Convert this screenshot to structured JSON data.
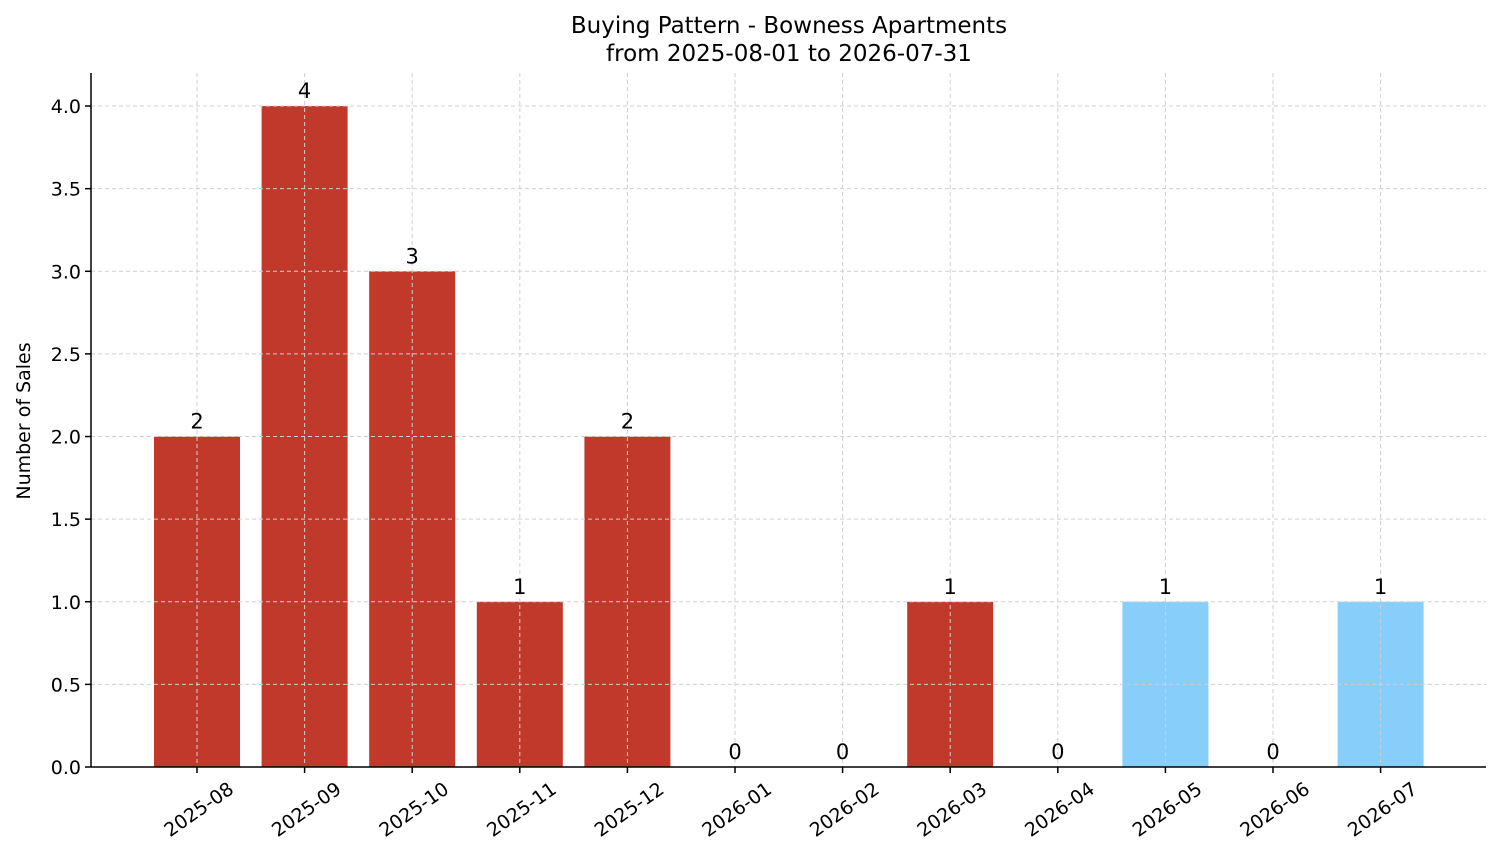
{
  "chart_data": {
    "type": "bar",
    "title_line1": "Buying Pattern - Bowness Apartments",
    "title_line2": "from 2025-08-01 to 2026-07-31",
    "xlabel": "",
    "ylabel": "Number of Sales",
    "ylim": [
      0,
      4.2
    ],
    "yticks": [
      "0.0",
      "0.5",
      "1.0",
      "1.5",
      "2.0",
      "2.5",
      "3.0",
      "3.5",
      "4.0"
    ],
    "grid": true,
    "categories": [
      "2025-08",
      "2025-09",
      "2025-10",
      "2025-11",
      "2025-12",
      "2026-01",
      "2026-02",
      "2026-03",
      "2026-04",
      "2026-05",
      "2026-06",
      "2026-07"
    ],
    "values": [
      2,
      4,
      3,
      1,
      2,
      0,
      0,
      1,
      0,
      1,
      0,
      1
    ],
    "bar_colors": [
      "#c0392b",
      "#c0392b",
      "#c0392b",
      "#c0392b",
      "#c0392b",
      "#c0392b",
      "#c0392b",
      "#c0392b",
      "#c0392b",
      "#87cefa",
      "#c0392b",
      "#87cefa"
    ]
  }
}
